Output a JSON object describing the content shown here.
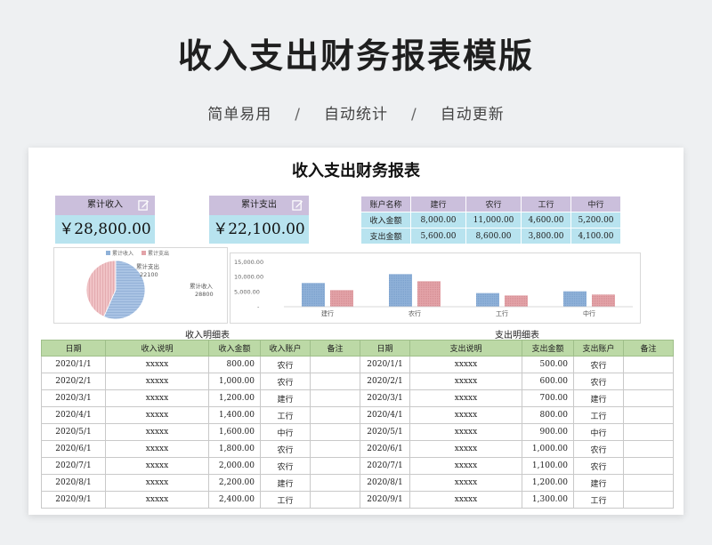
{
  "hero": {
    "title": "收入支出财务报表模版",
    "sub1": "简单易用",
    "sub2": "自动统计",
    "sub3": "自动更新",
    "sep": "/"
  },
  "sheet": {
    "title": "收入支出财务报表",
    "kpi_income": {
      "label": "累计收入",
      "value": "￥28,800.00"
    },
    "kpi_expense": {
      "label": "累计支出",
      "value": "￥22,100.00"
    },
    "bank_table": {
      "headers": [
        "账户名称",
        "建行",
        "农行",
        "工行",
        "中行"
      ],
      "rows": [
        [
          "收入金额",
          "8,000.00",
          "11,000.00",
          "4,600.00",
          "5,200.00"
        ],
        [
          "支出金额",
          "5,600.00",
          "8,600.00",
          "3,800.00",
          "4,100.00"
        ]
      ]
    },
    "income_caption": "收入明细表",
    "expense_caption": "支出明细表",
    "detail_headers": [
      "日期",
      "收入说明",
      "收入金额",
      "收入账户",
      "备注",
      "日期",
      "支出说明",
      "支出金额",
      "支出账户",
      "备注"
    ],
    "detail_rows": [
      [
        "2020/1/1",
        "xxxxx",
        "800.00",
        "农行",
        "",
        "2020/1/1",
        "xxxxx",
        "500.00",
        "农行",
        ""
      ],
      [
        "2020/2/1",
        "xxxxx",
        "1,000.00",
        "农行",
        "",
        "2020/2/1",
        "xxxxx",
        "600.00",
        "农行",
        ""
      ],
      [
        "2020/3/1",
        "xxxxx",
        "1,200.00",
        "建行",
        "",
        "2020/3/1",
        "xxxxx",
        "700.00",
        "建行",
        ""
      ],
      [
        "2020/4/1",
        "xxxxx",
        "1,400.00",
        "工行",
        "",
        "2020/4/1",
        "xxxxx",
        "800.00",
        "工行",
        ""
      ],
      [
        "2020/5/1",
        "xxxxx",
        "1,600.00",
        "中行",
        "",
        "2020/5/1",
        "xxxxx",
        "900.00",
        "中行",
        ""
      ],
      [
        "2020/6/1",
        "xxxxx",
        "1,800.00",
        "农行",
        "",
        "2020/6/1",
        "xxxxx",
        "1,000.00",
        "农行",
        ""
      ],
      [
        "2020/7/1",
        "xxxxx",
        "2,000.00",
        "农行",
        "",
        "2020/7/1",
        "xxxxx",
        "1,100.00",
        "农行",
        ""
      ],
      [
        "2020/8/1",
        "xxxxx",
        "2,200.00",
        "建行",
        "",
        "2020/8/1",
        "xxxxx",
        "1,200.00",
        "建行",
        ""
      ],
      [
        "2020/9/1",
        "xxxxx",
        "2,400.00",
        "工行",
        "",
        "2020/9/1",
        "xxxxx",
        "1,300.00",
        "工行",
        ""
      ]
    ]
  },
  "chart_data": [
    {
      "type": "pie",
      "labels": [
        "累计支出",
        "累计收入"
      ],
      "values": [
        22100,
        28800
      ],
      "legend": [
        "累计收入",
        "累计支出"
      ],
      "data_labels": [
        {
          "name": "累计支出",
          "value": "22100"
        },
        {
          "name": "累计收入",
          "value": "28800"
        }
      ],
      "colors": {
        "累计收入": "#8fb1d8",
        "累计支出": "#e3a3a8"
      },
      "legend_placement": "top"
    },
    {
      "type": "bar",
      "categories": [
        "建行",
        "农行",
        "工行",
        "中行"
      ],
      "series": [
        {
          "values": [
            8000,
            11000,
            4600,
            5200
          ],
          "color": "#8fb1d8"
        },
        {
          "values": [
            5600,
            8600,
            3800,
            4100
          ],
          "color": "#e3a3a8"
        }
      ],
      "yticks": [
        "15,000.00",
        "10,000.00",
        "5,000.00",
        "-"
      ],
      "ylim": [
        0,
        15000
      ],
      "grid": false
    }
  ]
}
